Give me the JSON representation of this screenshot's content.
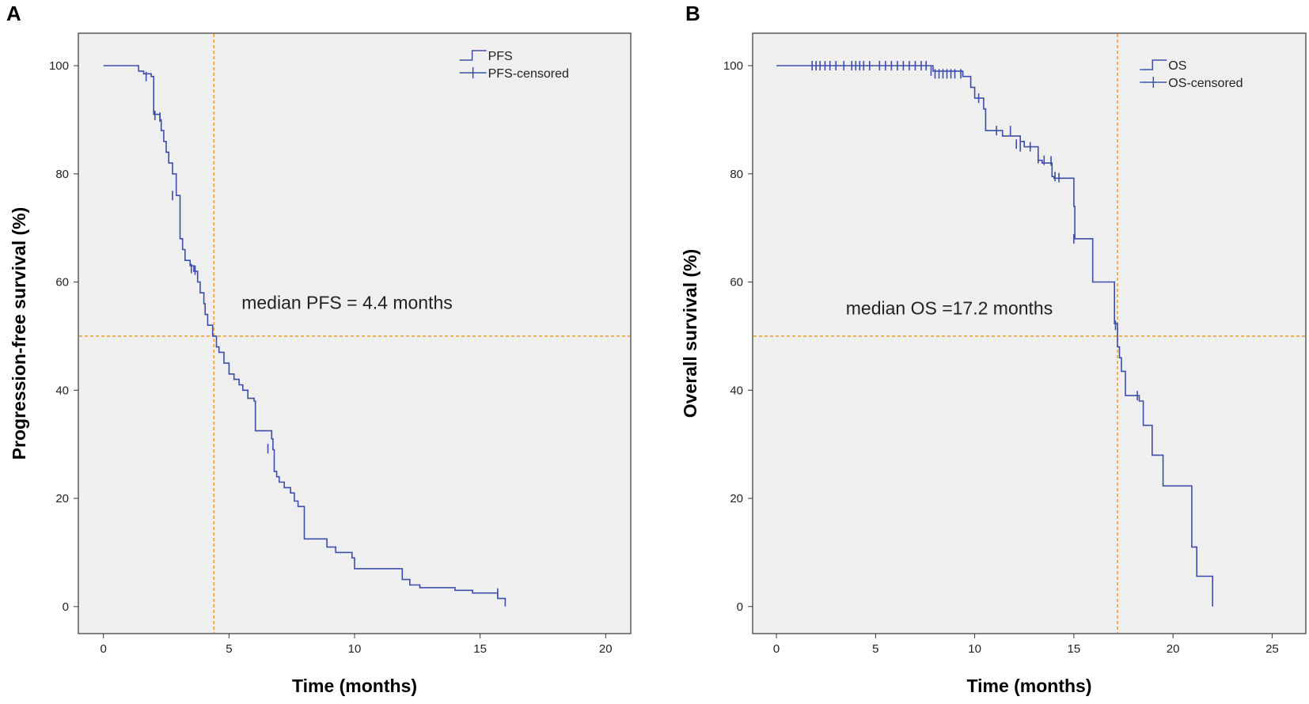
{
  "colors": {
    "curve": "#3d4ea8",
    "ref_line": "#f0a030",
    "plot_bg": "#efefef",
    "frame": "#444444"
  },
  "chart_data": [
    {
      "panel": "A",
      "type": "line",
      "xlabel": "Time (months)",
      "ylabel": "Progression-free survival (%)",
      "xlim": [
        -1,
        21
      ],
      "ylim": [
        -5,
        106
      ],
      "xticks": [
        0,
        5,
        10,
        15,
        20
      ],
      "yticks": [
        0,
        20,
        40,
        60,
        80,
        100
      ],
      "legend": [
        "PFS",
        "PFS-censored"
      ],
      "annotation": "median PFS = 4.4 months",
      "median": 4.4,
      "annotation_pos": [
        5.5,
        55
      ],
      "steps": [
        [
          0,
          100
        ],
        [
          1.2,
          100
        ],
        [
          1.4,
          99
        ],
        [
          1.6,
          98.5
        ],
        [
          1.9,
          98
        ],
        [
          2.0,
          91
        ],
        [
          2.25,
          90
        ],
        [
          2.3,
          88
        ],
        [
          2.4,
          86
        ],
        [
          2.5,
          84
        ],
        [
          2.6,
          82
        ],
        [
          2.75,
          80
        ],
        [
          2.9,
          76
        ],
        [
          3.05,
          68
        ],
        [
          3.15,
          66
        ],
        [
          3.25,
          64
        ],
        [
          3.45,
          63
        ],
        [
          3.6,
          62
        ],
        [
          3.75,
          60
        ],
        [
          3.85,
          58
        ],
        [
          4.0,
          56
        ],
        [
          4.05,
          54
        ],
        [
          4.15,
          52
        ],
        [
          4.35,
          50
        ],
        [
          4.5,
          48
        ],
        [
          4.6,
          47
        ],
        [
          4.8,
          45
        ],
        [
          5.0,
          43
        ],
        [
          5.2,
          42
        ],
        [
          5.4,
          41
        ],
        [
          5.55,
          40
        ],
        [
          5.75,
          38.5
        ],
        [
          6.0,
          38
        ],
        [
          6.05,
          32.5
        ],
        [
          6.7,
          31
        ],
        [
          6.75,
          29
        ],
        [
          6.8,
          25
        ],
        [
          6.9,
          24
        ],
        [
          7.0,
          23
        ],
        [
          7.2,
          22
        ],
        [
          7.45,
          21
        ],
        [
          7.6,
          19.5
        ],
        [
          7.75,
          18.5
        ],
        [
          8.0,
          12.5
        ],
        [
          8.9,
          11
        ],
        [
          9.25,
          10
        ],
        [
          9.9,
          9
        ],
        [
          10.0,
          7
        ],
        [
          11.9,
          5
        ],
        [
          12.2,
          4
        ],
        [
          12.6,
          3.5
        ],
        [
          14.0,
          3
        ],
        [
          14.7,
          2.5
        ],
        [
          15.7,
          1.5
        ],
        [
          16.0,
          0
        ]
      ],
      "censored": [
        [
          1.7,
          98
        ],
        [
          2.05,
          90.8
        ],
        [
          2.25,
          90.5
        ],
        [
          2.75,
          76
        ],
        [
          3.5,
          62.5
        ],
        [
          3.65,
          62.2
        ],
        [
          6.55,
          29.2
        ],
        [
          15.7,
          2.5
        ]
      ]
    },
    {
      "panel": "B",
      "type": "line",
      "xlabel": "Time (months)",
      "ylabel": "Overall survival (%)",
      "xlim": [
        -1.2,
        26.7
      ],
      "ylim": [
        -5,
        106
      ],
      "xticks": [
        0,
        5,
        10,
        15,
        20,
        25
      ],
      "yticks": [
        0,
        20,
        40,
        60,
        80,
        100
      ],
      "legend": [
        "OS",
        "OS-censored"
      ],
      "annotation": "median OS =17.2 months",
      "median": 17.2,
      "annotation_pos": [
        3.5,
        54
      ],
      "steps": [
        [
          0,
          100
        ],
        [
          7.6,
          100
        ],
        [
          7.9,
          99
        ],
        [
          9.4,
          98
        ],
        [
          9.8,
          96
        ],
        [
          10.0,
          94
        ],
        [
          10.45,
          92
        ],
        [
          10.55,
          88
        ],
        [
          11.4,
          87
        ],
        [
          12.3,
          86
        ],
        [
          12.5,
          85
        ],
        [
          13.2,
          82.5
        ],
        [
          13.4,
          82
        ],
        [
          13.9,
          79.5
        ],
        [
          14.0,
          79.2
        ],
        [
          15.0,
          74
        ],
        [
          15.05,
          68
        ],
        [
          15.95,
          60
        ],
        [
          17.05,
          52.3
        ],
        [
          17.2,
          48
        ],
        [
          17.3,
          46
        ],
        [
          17.4,
          43.5
        ],
        [
          17.6,
          39
        ],
        [
          18.3,
          38
        ],
        [
          18.5,
          33.5
        ],
        [
          18.95,
          28
        ],
        [
          19.5,
          22.3
        ],
        [
          20.95,
          11
        ],
        [
          21.2,
          5.6
        ],
        [
          22.0,
          0
        ]
      ],
      "censored": [
        [
          1.8,
          100
        ],
        [
          2.0,
          100
        ],
        [
          2.2,
          100
        ],
        [
          2.45,
          100
        ],
        [
          2.7,
          100
        ],
        [
          3.0,
          100
        ],
        [
          3.4,
          100
        ],
        [
          3.8,
          100
        ],
        [
          4.0,
          100
        ],
        [
          4.2,
          100
        ],
        [
          4.4,
          100
        ],
        [
          4.7,
          100
        ],
        [
          5.2,
          100
        ],
        [
          5.5,
          100
        ],
        [
          5.8,
          100
        ],
        [
          6.1,
          100
        ],
        [
          6.4,
          100
        ],
        [
          6.7,
          100
        ],
        [
          7.0,
          100
        ],
        [
          7.3,
          100
        ],
        [
          7.55,
          100
        ],
        [
          7.8,
          99
        ],
        [
          8.0,
          98.5
        ],
        [
          8.2,
          98.5
        ],
        [
          8.4,
          98.5
        ],
        [
          8.6,
          98.5
        ],
        [
          8.8,
          98.5
        ],
        [
          9.0,
          98.5
        ],
        [
          9.3,
          98.5
        ],
        [
          10.2,
          94
        ],
        [
          11.1,
          88
        ],
        [
          11.8,
          88
        ],
        [
          12.1,
          85.5
        ],
        [
          12.3,
          85
        ],
        [
          12.8,
          85
        ],
        [
          13.2,
          82.8
        ],
        [
          13.5,
          82.5
        ],
        [
          13.85,
          82.4
        ],
        [
          14.05,
          79.5
        ],
        [
          14.25,
          79.3
        ],
        [
          15.0,
          68
        ],
        [
          17.1,
          52
        ],
        [
          18.2,
          39
        ]
      ]
    }
  ]
}
